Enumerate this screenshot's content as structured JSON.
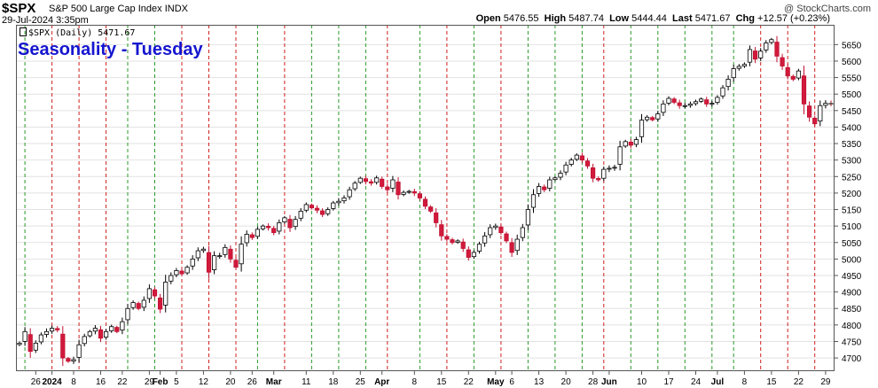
{
  "header": {
    "ticker": "$SPX",
    "description": "S&P 500 Large Cap Index",
    "exchange": "INDX",
    "date_time": "29-Jul-2024 3:35pm",
    "watermark": "@ StockCharts.com"
  },
  "ohlc": {
    "open_label": "Open",
    "open": "5476.55",
    "high_label": "High",
    "high": "5487.74",
    "low_label": "Low",
    "low": "5444.44",
    "last_label": "Last",
    "last": "5471.67",
    "chg_label": "Chg",
    "chg": "+12.57 (+0.23%)"
  },
  "legend": {
    "label": "$SPX (Daily) 5471.67"
  },
  "chart_data": {
    "type": "candlestick",
    "title": "Seasonality - Tuesday",
    "ylim": [
      4660,
      5710
    ],
    "y_ticks": [
      4700,
      4750,
      4800,
      4850,
      4900,
      4950,
      5000,
      5050,
      5100,
      5150,
      5200,
      5250,
      5300,
      5350,
      5400,
      5450,
      5500,
      5550,
      5600,
      5650
    ],
    "x_tick_labels": [
      {
        "label": "26",
        "idx": 3
      },
      {
        "label": "2024",
        "idx": 6,
        "bold": true
      },
      {
        "label": "8",
        "idx": 10
      },
      {
        "label": "16",
        "idx": 15
      },
      {
        "label": "22",
        "idx": 19
      },
      {
        "label": "29",
        "idx": 24
      },
      {
        "label": "Feb",
        "idx": 26,
        "bold": true
      },
      {
        "label": "5",
        "idx": 29
      },
      {
        "label": "12",
        "idx": 34
      },
      {
        "label": "20",
        "idx": 39
      },
      {
        "label": "26",
        "idx": 43
      },
      {
        "label": "Mar",
        "idx": 47,
        "bold": true
      },
      {
        "label": "11",
        "idx": 53
      },
      {
        "label": "18",
        "idx": 58
      },
      {
        "label": "25",
        "idx": 63
      },
      {
        "label": "Apr",
        "idx": 67,
        "bold": true
      },
      {
        "label": "8",
        "idx": 73
      },
      {
        "label": "15",
        "idx": 78
      },
      {
        "label": "22",
        "idx": 83
      },
      {
        "label": "May",
        "idx": 88,
        "bold": true
      },
      {
        "label": "6",
        "idx": 91
      },
      {
        "label": "13",
        "idx": 96
      },
      {
        "label": "20",
        "idx": 101
      },
      {
        "label": "28",
        "idx": 106
      },
      {
        "label": "Jun",
        "idx": 109,
        "bold": true
      },
      {
        "label": "10",
        "idx": 115
      },
      {
        "label": "17",
        "idx": 120
      },
      {
        "label": "24",
        "idx": 125
      },
      {
        "label": "Jul",
        "idx": 129,
        "bold": true
      },
      {
        "label": "8",
        "idx": 134
      },
      {
        "label": "15",
        "idx": 139
      },
      {
        "label": "22",
        "idx": 144
      },
      {
        "label": "29",
        "idx": 149
      }
    ],
    "tuesday_markers": [
      {
        "idx": 1,
        "color": "green"
      },
      {
        "idx": 6,
        "color": "red"
      },
      {
        "idx": 11,
        "color": "red"
      },
      {
        "idx": 16,
        "color": "red"
      },
      {
        "idx": 20,
        "color": "green"
      },
      {
        "idx": 25,
        "color": "green"
      },
      {
        "idx": 30,
        "color": "red"
      },
      {
        "idx": 35,
        "color": "red"
      },
      {
        "idx": 40,
        "color": "red"
      },
      {
        "idx": 44,
        "color": "green"
      },
      {
        "idx": 49,
        "color": "red"
      },
      {
        "idx": 54,
        "color": "green"
      },
      {
        "idx": 59,
        "color": "green"
      },
      {
        "idx": 64,
        "color": "green"
      },
      {
        "idx": 68,
        "color": "red"
      },
      {
        "idx": 74,
        "color": "green"
      },
      {
        "idx": 79,
        "color": "red"
      },
      {
        "idx": 84,
        "color": "green"
      },
      {
        "idx": 89,
        "color": "red"
      },
      {
        "idx": 94,
        "color": "green"
      },
      {
        "idx": 99,
        "color": "green"
      },
      {
        "idx": 104,
        "color": "green"
      },
      {
        "idx": 108,
        "color": "red"
      },
      {
        "idx": 113,
        "color": "green"
      },
      {
        "idx": 118,
        "color": "green"
      },
      {
        "idx": 123,
        "color": "green"
      },
      {
        "idx": 128,
        "color": "green"
      },
      {
        "idx": 132,
        "color": "green"
      },
      {
        "idx": 137,
        "color": "red"
      },
      {
        "idx": 142,
        "color": "red"
      },
      {
        "idx": 147,
        "color": "red"
      }
    ],
    "x_count": 151,
    "closes": [
      4745,
      4780,
      4720,
      4745,
      4770,
      4780,
      4790,
      4785,
      4700,
      4690,
      4695,
      4740,
      4765,
      4780,
      4790,
      4760,
      4780,
      4795,
      4780,
      4810,
      4850,
      4868,
      4850,
      4875,
      4910,
      4888,
      4848,
      4930,
      4950,
      4965,
      4955,
      4975,
      5000,
      5025,
      5030,
      4960,
      5010,
      5010,
      5035,
      5000,
      4975,
      5045,
      5075,
      5065,
      5090,
      5100,
      5095,
      5080,
      5110,
      5125,
      5095,
      5120,
      5145,
      5165,
      5155,
      5148,
      5135,
      5150,
      5170,
      5175,
      5185,
      5210,
      5230,
      5245,
      5235,
      5230,
      5246,
      5220,
      5210,
      5240,
      5195,
      5202,
      5205,
      5200,
      5185,
      5160,
      5145,
      5110,
      5070,
      5060,
      5050,
      5055,
      5032,
      5005,
      5020,
      5045,
      5070,
      5095,
      5100,
      5080,
      5055,
      5020,
      5060,
      5095,
      5150,
      5195,
      5220,
      5210,
      5240,
      5246,
      5260,
      5285,
      5300,
      5315,
      5300,
      5282,
      5245,
      5240,
      5272,
      5275,
      5278,
      5340,
      5356,
      5345,
      5362,
      5421,
      5430,
      5422,
      5440,
      5470,
      5487,
      5475,
      5465,
      5465,
      5470,
      5477,
      5485,
      5470,
      5472,
      5490,
      5519,
      5545,
      5577,
      5584,
      5590,
      5635,
      5606,
      5630,
      5655,
      5665,
      5615,
      5585,
      5555,
      5545,
      5570,
      5470,
      5430,
      5410,
      5465,
      5472,
      5471.67
    ]
  }
}
